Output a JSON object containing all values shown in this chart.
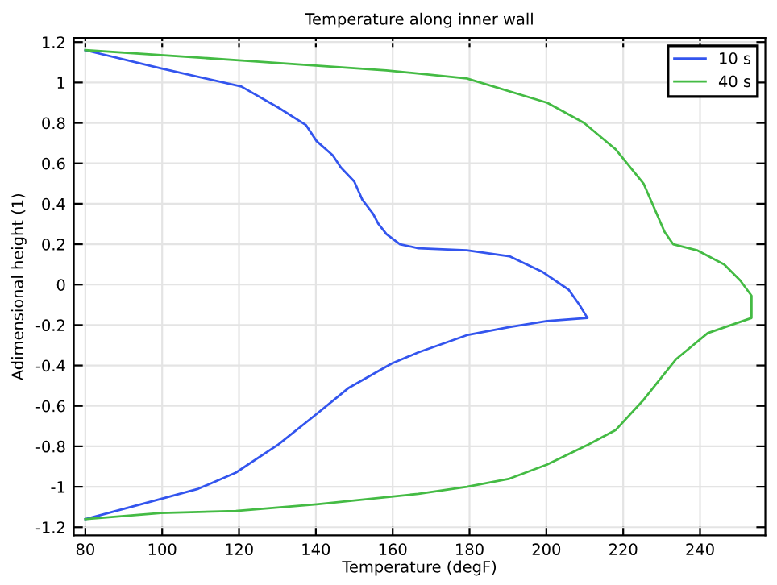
{
  "chart_data": {
    "type": "line",
    "title": "Temperature along inner wall",
    "xlabel": "Temperature (degF)",
    "ylabel": "Adimensional height (1)",
    "series": [
      {
        "name": "10 s",
        "color": "#3355ee",
        "x": [
          80,
          99.7,
          120.6,
          130.3,
          137.4,
          140.2,
          144.4,
          146.5,
          150,
          152.1,
          154.9,
          156.3,
          158.4,
          161.9,
          166.7,
          179.3,
          190.4,
          198.8,
          205.8,
          208.6,
          210.7,
          200.2,
          190.4,
          179.3,
          166.7,
          159.8,
          148.6,
          140.2,
          130.3,
          119.2,
          109.4,
          99.7,
          80
        ],
        "values": [
          1.16,
          1.07,
          0.98,
          0.875,
          0.79,
          0.71,
          0.64,
          0.58,
          0.51,
          0.42,
          0.35,
          0.3,
          0.25,
          0.2,
          0.18,
          0.17,
          0.14,
          0.065,
          -0.025,
          -0.1,
          -0.165,
          -0.18,
          -0.21,
          -0.25,
          -0.335,
          -0.39,
          -0.51,
          -0.64,
          -0.79,
          -0.93,
          -1.01,
          -1.06,
          -1.16
        ]
      },
      {
        "name": "40 s",
        "color": "#44bb44",
        "x": [
          80,
          120,
          158.3,
          179.3,
          200.2,
          209.8,
          218,
          225.3,
          230.8,
          233,
          239.2,
          246.3,
          250.5,
          253.4,
          253.4,
          242,
          233.7,
          225.3,
          218,
          211,
          200.2,
          190.4,
          179.3,
          166.7,
          140.2,
          119.2,
          99.7,
          80
        ],
        "values": [
          1.16,
          1.11,
          1.06,
          1.02,
          0.9,
          0.8,
          0.67,
          0.5,
          0.26,
          0.2,
          0.17,
          0.1,
          0.02,
          -0.055,
          -0.165,
          -0.24,
          -0.37,
          -0.57,
          -0.72,
          -0.79,
          -0.89,
          -0.96,
          -1.0,
          -1.035,
          -1.087,
          -1.12,
          -1.13,
          -1.16
        ]
      }
    ],
    "xlim": [
      77,
      257
    ],
    "ylim": [
      -1.24,
      1.22
    ],
    "xticks": [
      80,
      100,
      120,
      140,
      160,
      180,
      200,
      220,
      240
    ],
    "yticks": [
      -1.2,
      -1,
      -0.8,
      -0.6,
      -0.4,
      -0.2,
      0,
      0.2,
      0.4,
      0.6,
      0.8,
      1,
      1.2
    ],
    "grid": true,
    "legend": "top right",
    "marker": "none",
    "line_style": "solid"
  }
}
